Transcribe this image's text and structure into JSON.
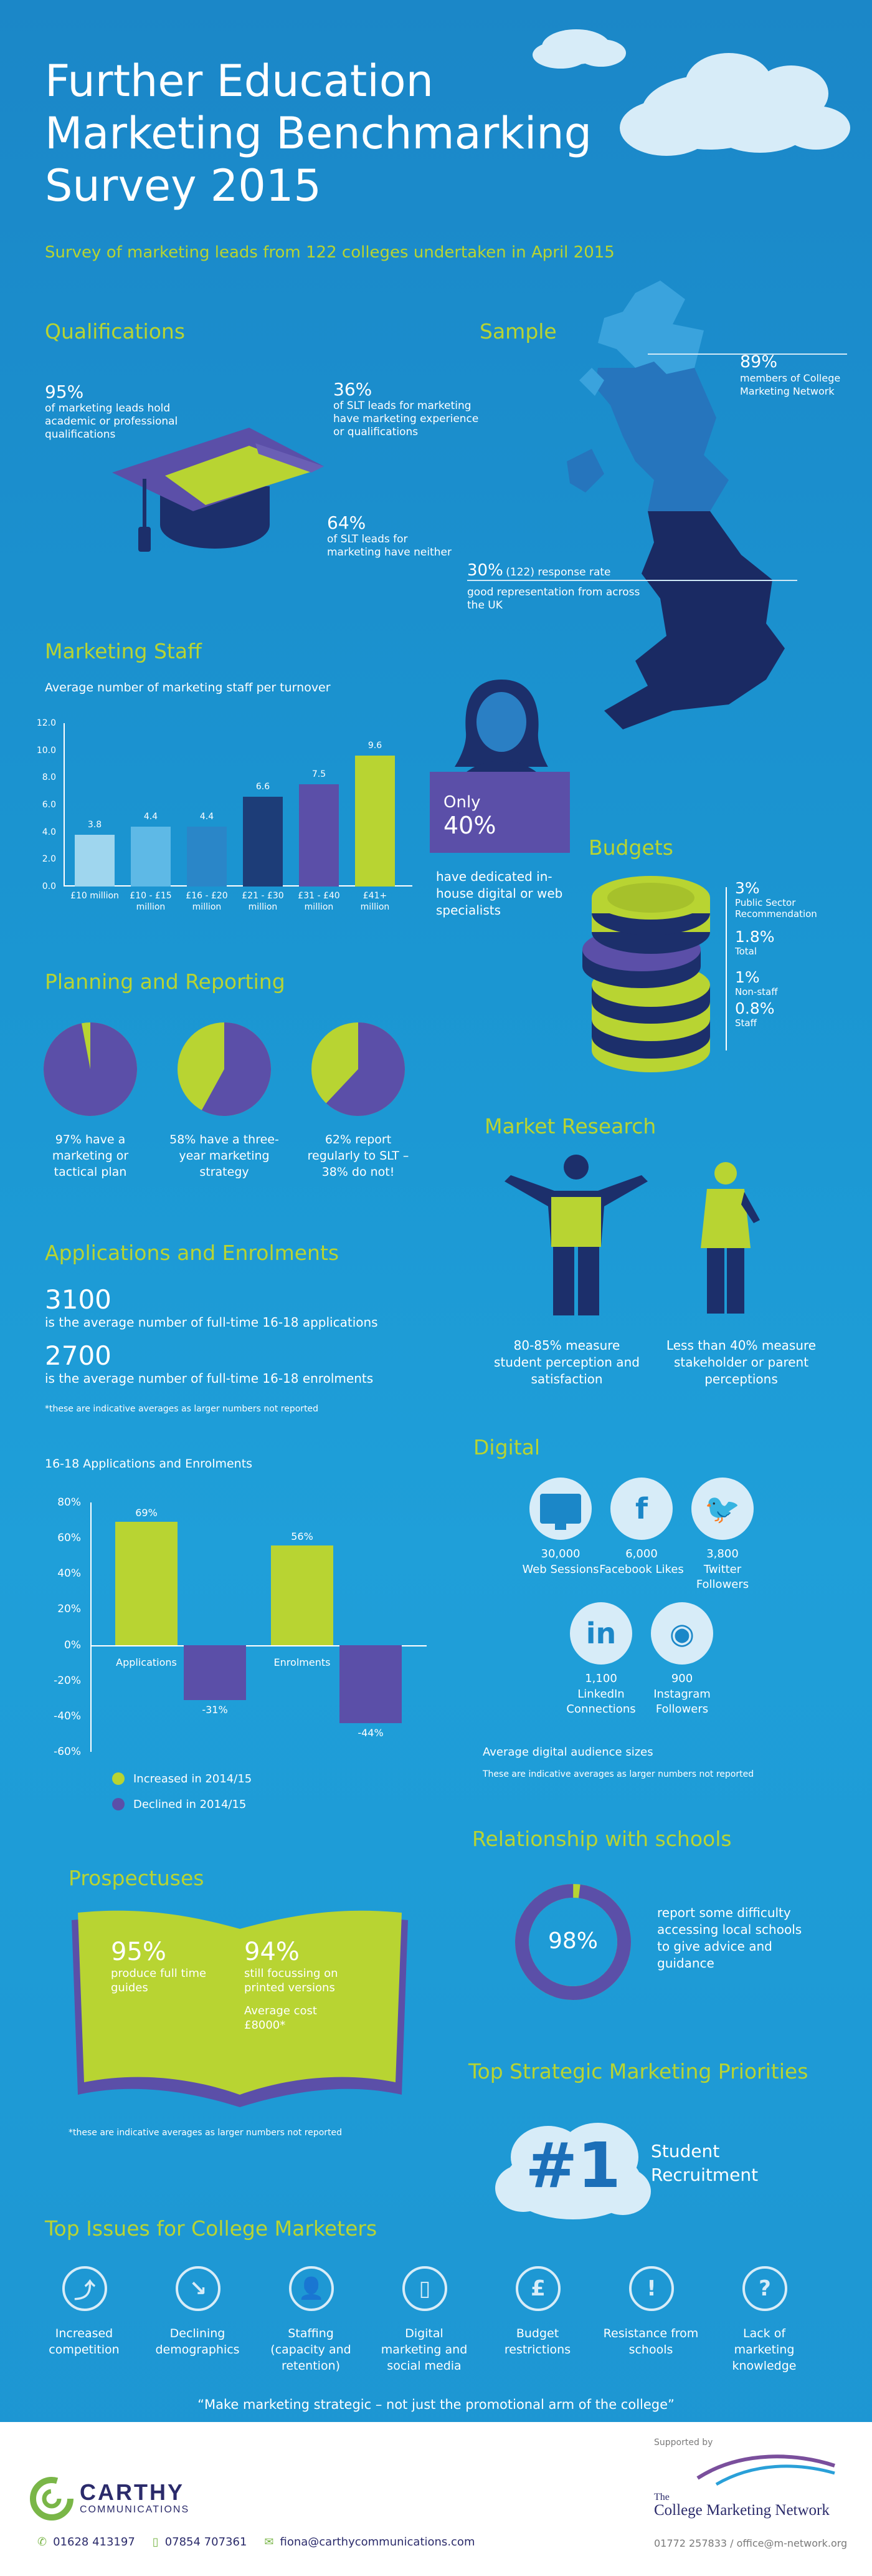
{
  "header": {
    "title_line1": "Further Education",
    "title_line2": "Marketing Benchmarking",
    "title_line3": "Survey 2015",
    "subtitle": "Survey of marketing leads from 122 colleges undertaken in April 2015"
  },
  "qualifications": {
    "heading": "Qualifications",
    "stat1_pct": "95%",
    "stat1_text": "of marketing leads hold academic or professional qualifications",
    "stat2_pct": "36%",
    "stat2_text": "of SLT leads for marketing have marketing experience or qualifications",
    "stat3_pct": "64%",
    "stat3_text": "of SLT leads for marketing have neither"
  },
  "sample": {
    "heading": "Sample",
    "stat1_pct": "89%",
    "stat1_text": "members of College Marketing Network",
    "stat2_pct": "30%",
    "stat2_extra": "(122) response rate",
    "stat2_text": "good representation from across the UK"
  },
  "marketing_staff": {
    "heading": "Marketing Staff",
    "chart_title": "Average number of marketing staff per turnover",
    "inhouse_prefix": "Only",
    "inhouse_pct": "40%",
    "inhouse_text": "have dedicated in-house digital or web specialists"
  },
  "staff_chart_data": {
    "type": "bar",
    "categories": [
      "£10 million",
      "£10 - £15 million",
      "£16 - £20 million",
      "£21 - £30 million",
      "£31 - £40 million",
      "£41+ million"
    ],
    "values": [
      3.8,
      4.4,
      4.4,
      6.6,
      7.5,
      9.6
    ],
    "yticks": [
      "12.0",
      "10.0",
      "8.0",
      "6.0",
      "4.0",
      "2.0",
      "0.0"
    ],
    "ylim": [
      0,
      12
    ],
    "colors": [
      "#9fd6ee",
      "#5eb9e6",
      "#2a86c8",
      "#1d3d78",
      "#5b4fa8",
      "#b8d432"
    ]
  },
  "budgets": {
    "heading": "Budgets",
    "items": [
      {
        "pct": "3%",
        "label": "Public Sector Recommendation"
      },
      {
        "pct": "1.8%",
        "label": "Total"
      },
      {
        "pct": "1%",
        "label": "Non-staff"
      },
      {
        "pct": "0.8%",
        "label": "Staff"
      }
    ]
  },
  "planning": {
    "heading": "Planning and Reporting",
    "pies": [
      {
        "value": 97,
        "text": "97% have a marketing or tactical plan"
      },
      {
        "value": 58,
        "text": "58% have a three-year marketing strategy"
      },
      {
        "value": 62,
        "text": "62% report regularly to SLT – 38% do not!"
      }
    ]
  },
  "market_research": {
    "heading": "Market Research",
    "stat1": "80-85% measure student perception and satisfaction",
    "stat2": "Less than 40% measure stakeholder or parent perceptions"
  },
  "applications": {
    "heading": "Applications and Enrolments",
    "stat1_value": "3100",
    "stat1_text": "is the average number of full-time 16-18 applications",
    "stat2_value": "2700",
    "stat2_text": "is the average number of full-time 16-18 enrolments",
    "note": "*these are indicative averages as larger numbers not reported"
  },
  "chart_data": {
    "type": "bar",
    "title": "16-18 Applications and Enrolments",
    "categories": [
      "Applications",
      "Enrolments"
    ],
    "series": [
      {
        "name": "Increased in 2014/15",
        "values": [
          69,
          56
        ],
        "color": "#b8d432"
      },
      {
        "name": "Declined in 2014/15",
        "values": [
          -31,
          -44
        ],
        "color": "#5b4fa8"
      }
    ],
    "value_labels": [
      [
        "69%",
        "56%"
      ],
      [
        "-31%",
        "-44%"
      ]
    ],
    "yticks": [
      "80%",
      "60%",
      "40%",
      "20%",
      "0%",
      "-20%",
      "-40%",
      "-60%"
    ],
    "ylim": [
      -60,
      80
    ]
  },
  "digital": {
    "heading": "Digital",
    "items": [
      {
        "icon": "monitor-icon",
        "glyph": "",
        "value": "30,000",
        "label": "Web Sessions"
      },
      {
        "icon": "facebook-icon",
        "glyph": "f",
        "value": "6,000",
        "label": "Facebook Likes"
      },
      {
        "icon": "twitter-icon",
        "glyph": "🐦",
        "value": "3,800",
        "label": "Twitter Followers"
      },
      {
        "icon": "linkedin-icon",
        "glyph": "in",
        "value": "1,100",
        "label": "LinkedIn Connections"
      },
      {
        "icon": "instagram-icon",
        "glyph": "◉",
        "value": "900",
        "label": "Instagram Followers"
      }
    ],
    "footer_title": "Average digital audience sizes",
    "footer_note": "These are indicative averages as larger numbers not reported"
  },
  "schools": {
    "heading": "Relationship with schools",
    "pct": "98%",
    "value": 98,
    "text": "report some difficulty accessing local schools to give advice and guidance"
  },
  "prospectuses": {
    "heading": "Prospectuses",
    "stat1_pct": "95%",
    "stat1_text": "produce full time guides",
    "stat2_pct": "94%",
    "stat2_text": "still focussing on printed versions",
    "cost_label": "Average cost £8000*",
    "note": "*these are indicative averages as larger numbers not reported"
  },
  "priorities": {
    "heading": "Top Strategic Marketing Priorities",
    "rank": "#1",
    "label": "Student Recruitment"
  },
  "issues": {
    "heading": "Top Issues for College Marketers",
    "items": [
      {
        "icon": "line-graph-icon",
        "label": "Increased competition"
      },
      {
        "icon": "declining-graph-icon",
        "label": "Declining demographics"
      },
      {
        "icon": "person-icon",
        "label": "Staffing (capacity and retention)"
      },
      {
        "icon": "smartphone-icon",
        "label": "Digital marketing and social media"
      },
      {
        "icon": "pound-icon",
        "label": "Budget restrictions"
      },
      {
        "icon": "exclamation-icon",
        "label": "Resistance from schools"
      },
      {
        "icon": "question-icon",
        "label": "Lack of marketing knowledge"
      }
    ],
    "quote": "“Make marketing strategic – not just the promotional arm of the college”"
  },
  "footer": {
    "logo_line1": "CARTHY",
    "logo_line2": "COMMUNICATIONS",
    "phone1": "01628 413197",
    "phone2": "07854 707361",
    "email": "fiona@carthycommunications.com",
    "supported_by": "Supported by",
    "network_the": "The",
    "network_name": "College Marketing Network",
    "network_contact": "01772 257833 / office@m-network.org"
  }
}
